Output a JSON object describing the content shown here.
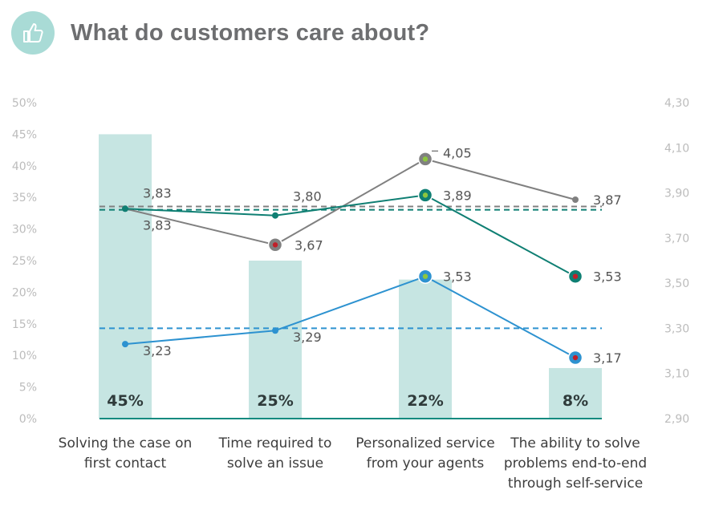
{
  "header": {
    "title": "What do customers care about?",
    "icon": "thumbs-up-icon"
  },
  "chart_data": {
    "type": "bar",
    "title": "What do customers care about?",
    "categories": [
      [
        "Solving the case on",
        "first contact"
      ],
      [
        "Time required to",
        "solve an issue"
      ],
      [
        "Personalized service",
        "from your agents"
      ],
      [
        "The ability to solve",
        "problems end-to-end",
        "through self-service"
      ]
    ],
    "bars": {
      "values": [
        45,
        25,
        22,
        8
      ],
      "labels": [
        "45%",
        "25%",
        "22%",
        "8%"
      ],
      "color": "#c6e5e2"
    },
    "left_axis": {
      "ylim": [
        0,
        50
      ],
      "ticks": [
        "0%",
        "5%",
        "10%",
        "15%",
        "20%",
        "25%",
        "30%",
        "35%",
        "40%",
        "45%",
        "50%"
      ],
      "tick_values": [
        0,
        5,
        10,
        15,
        20,
        25,
        30,
        35,
        40,
        45,
        50
      ]
    },
    "right_axis": {
      "ylim": [
        2.9,
        4.3
      ],
      "ticks": [
        "2,90",
        "3,10",
        "3,30",
        "3,50",
        "3,70",
        "3,90",
        "4,10",
        "4,30"
      ],
      "tick_values": [
        2.9,
        3.1,
        3.3,
        3.5,
        3.7,
        3.9,
        4.1,
        4.3
      ]
    },
    "series": [
      {
        "color": "#808080",
        "values": [
          3.83,
          3.67,
          4.05,
          3.87
        ],
        "labels": [
          "3,83",
          "3,67",
          "4,05",
          "3,87"
        ],
        "average": 3.84
      },
      {
        "color": "#0f7f73",
        "values": [
          3.83,
          3.8,
          3.89,
          3.53
        ],
        "labels": [
          "3,83",
          "3,80",
          "3,89",
          "3,53"
        ],
        "average": 3.825
      },
      {
        "color": "#2d92d0",
        "values": [
          3.23,
          3.29,
          3.53,
          3.17
        ],
        "labels": [
          "3,23",
          "3,29",
          "3,53",
          "3,17"
        ],
        "average": 3.3
      }
    ],
    "highlights": [
      {
        "series": 0,
        "index": 1,
        "dot": "#c0202a"
      },
      {
        "series": 0,
        "index": 2,
        "dot": "#8dc63f"
      },
      {
        "series": 1,
        "index": 2,
        "dot": "#8dc63f"
      },
      {
        "series": 1,
        "index": 3,
        "dot": "#c0202a"
      },
      {
        "series": 2,
        "index": 2,
        "dot": "#8dc63f"
      },
      {
        "series": 2,
        "index": 3,
        "dot": "#c0202a"
      }
    ],
    "baseline_color": "#0f8a7f",
    "grid": false
  }
}
